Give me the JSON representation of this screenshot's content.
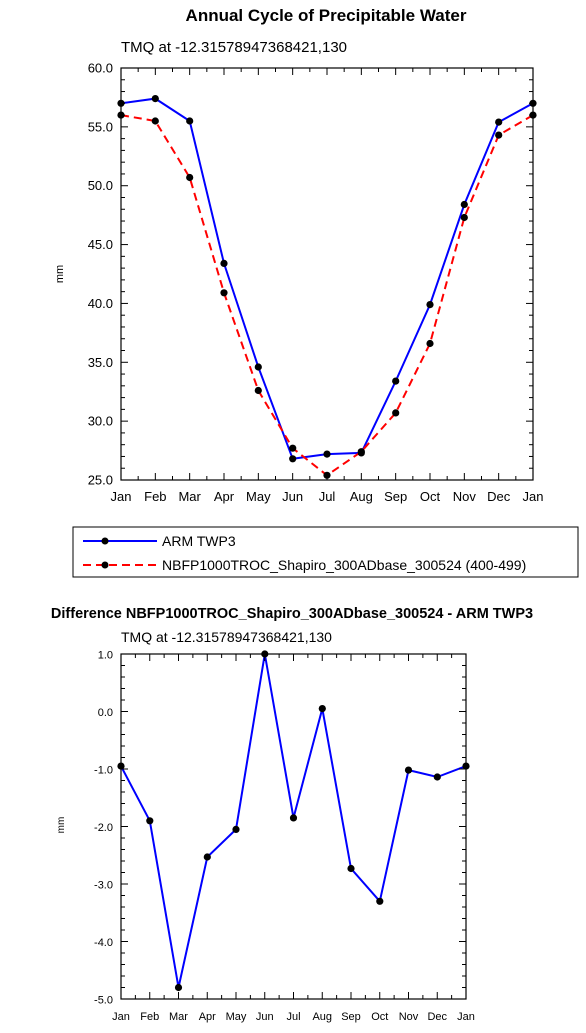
{
  "chart_data": [
    {
      "type": "line",
      "title": "Annual Cycle of Precipitable Water",
      "subtitle": "TMQ at -12.31578947368421,130",
      "xlabel": "",
      "ylabel": "mm",
      "categories": [
        "Jan",
        "Feb",
        "Mar",
        "Apr",
        "May",
        "Jun",
        "Jul",
        "Aug",
        "Sep",
        "Oct",
        "Nov",
        "Dec",
        "Jan"
      ],
      "ylim": [
        25.0,
        60.0
      ],
      "yticks": [
        "25.0",
        "30.0",
        "35.0",
        "40.0",
        "45.0",
        "50.0",
        "55.0",
        "60.0"
      ],
      "grid": false,
      "legend_position": "below",
      "series": [
        {
          "name": "ARM TWP3",
          "color": "#0000ff",
          "dash": "solid",
          "values": [
            57.0,
            57.4,
            55.5,
            43.4,
            34.6,
            26.8,
            27.2,
            27.3,
            33.4,
            39.9,
            48.4,
            55.4,
            57.0
          ]
        },
        {
          "name": "NBFP1000TROC_Shapiro_300ADbase_300524 (400-499)",
          "color": "#ff0000",
          "dash": "dashed",
          "values": [
            56.0,
            55.5,
            50.7,
            40.9,
            32.6,
            27.7,
            25.4,
            27.4,
            30.7,
            36.6,
            47.3,
            54.3,
            56.0
          ]
        }
      ]
    },
    {
      "type": "line",
      "title": "Difference NBFP1000TROC_Shapiro_300ADbase_300524 - ARM TWP3",
      "subtitle": "TMQ at -12.31578947368421,130",
      "xlabel": "",
      "ylabel": "mm",
      "categories": [
        "Jan",
        "Feb",
        "Mar",
        "Apr",
        "May",
        "Jun",
        "Jul",
        "Aug",
        "Sep",
        "Oct",
        "Nov",
        "Dec",
        "Jan"
      ],
      "ylim": [
        -5.0,
        1.0
      ],
      "yticks": [
        "-5.0",
        "-4.0",
        "-3.0",
        "-2.0",
        "-1.0",
        "0.0",
        "1.0"
      ],
      "grid": false,
      "series": [
        {
          "color": "#0000ff",
          "dash": "solid",
          "values": [
            -0.95,
            -1.9,
            -4.8,
            -2.53,
            -2.05,
            1.0,
            -1.85,
            0.05,
            -2.73,
            -3.3,
            -1.02,
            -1.14,
            -0.95
          ]
        }
      ]
    }
  ]
}
